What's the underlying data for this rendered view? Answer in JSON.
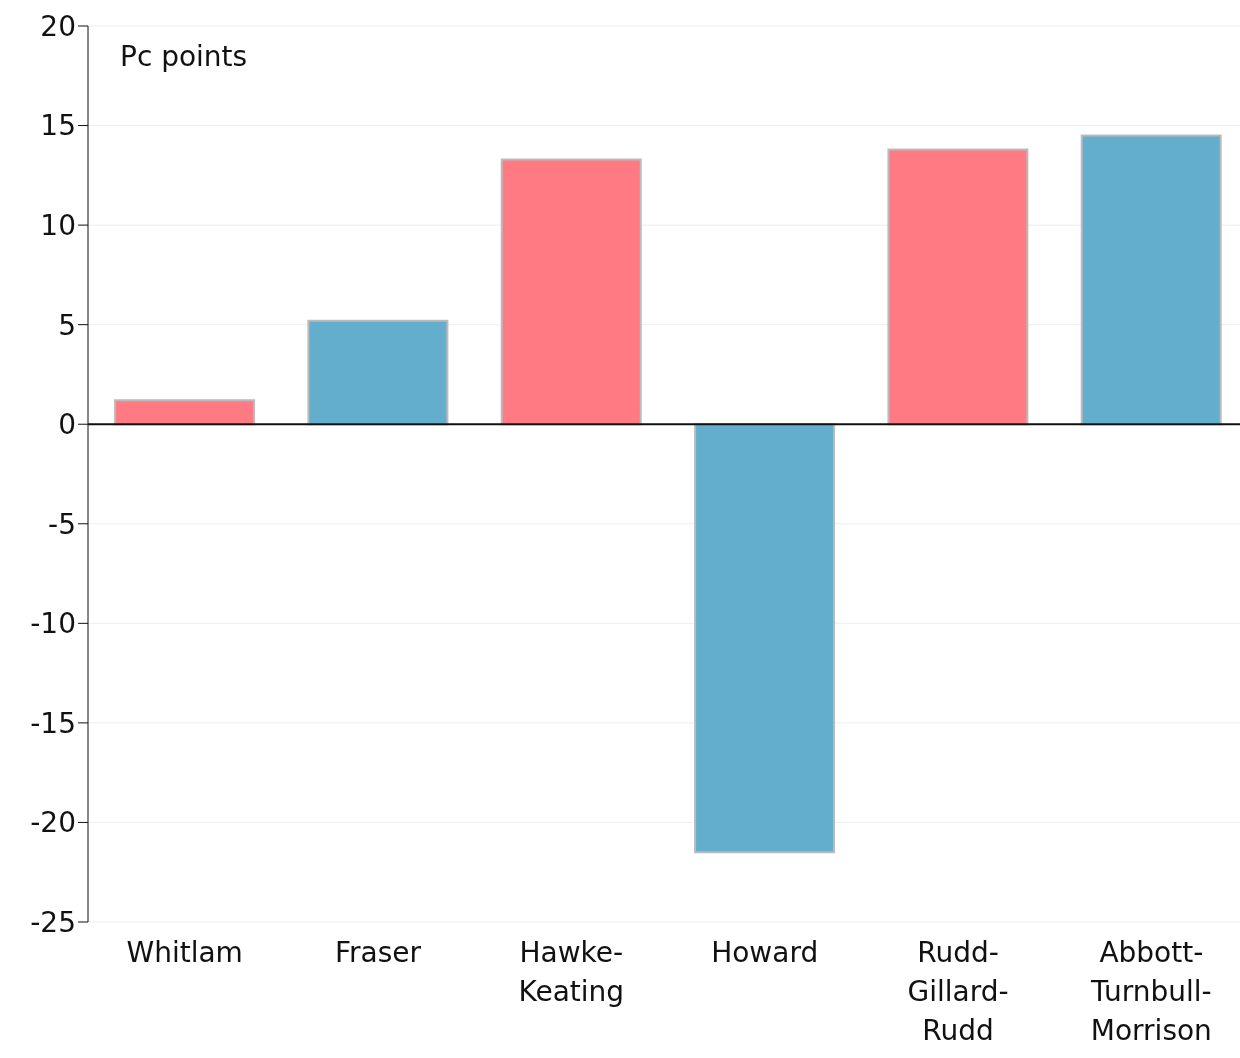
{
  "chart_data": {
    "type": "bar",
    "ylabel": "Pc points",
    "categories": [
      "Whitlam",
      "Fraser",
      "Hawke-Keating",
      "Howard",
      "Rudd-Gillard-Rudd",
      "Abbott-Turnbull-Morrison"
    ],
    "values": [
      1.2,
      5.2,
      13.3,
      -21.5,
      13.8,
      14.5
    ],
    "colors": [
      "#ff7a82",
      "#62aecc",
      "#ff7a82",
      "#62aecc",
      "#ff7a82",
      "#62aecc"
    ],
    "ylim": [
      -25,
      20
    ],
    "yticks": [
      -25,
      -20,
      -15,
      -10,
      -5,
      0,
      5,
      10,
      15,
      20
    ],
    "grid": "y"
  }
}
